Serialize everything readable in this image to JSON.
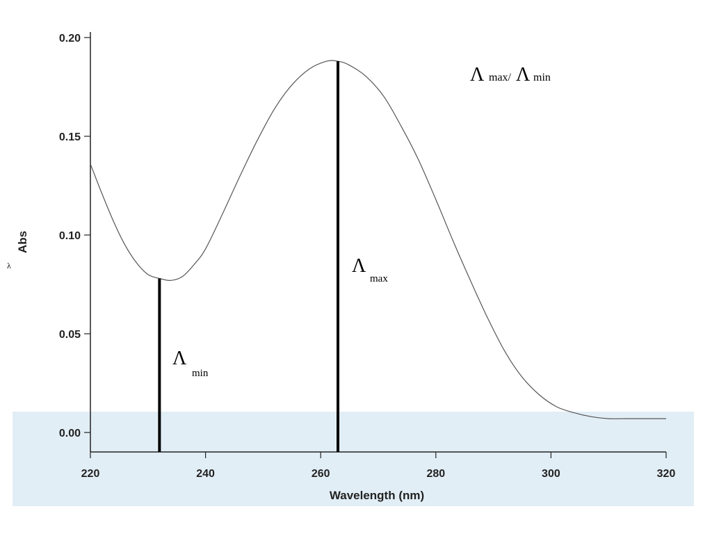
{
  "chart_data": {
    "type": "line",
    "title": "",
    "xlabel": "Wavelength (nm)",
    "ylabel": "Abs",
    "xlim": [
      220,
      320
    ],
    "ylim": [
      0,
      0.2
    ],
    "x_ticks": [
      220,
      240,
      260,
      280,
      300,
      320
    ],
    "x_tick_labels": [
      "220",
      "240",
      "260",
      "280",
      "300",
      "320"
    ],
    "y_ticks": [
      0,
      0.05,
      0.1,
      0.15,
      0.2
    ],
    "y_tick_labels": [
      "0.00",
      "0.05",
      "0.10",
      "0.15",
      "0.20"
    ],
    "grid": false,
    "series": [
      {
        "x": [
          220,
          222,
          224,
          226,
          228,
          230,
          232,
          234,
          236,
          238,
          240,
          243,
          246,
          249,
          252,
          255,
          258,
          261,
          263,
          265,
          268,
          271,
          274,
          277,
          280,
          283,
          286,
          289,
          292,
          295,
          298,
          301,
          304,
          307,
          310,
          313,
          316,
          320
        ],
        "y": [
          0.136,
          0.121,
          0.107,
          0.095,
          0.086,
          0.08,
          0.078,
          0.077,
          0.079,
          0.085,
          0.093,
          0.111,
          0.13,
          0.148,
          0.164,
          0.176,
          0.184,
          0.188,
          0.188,
          0.186,
          0.18,
          0.17,
          0.155,
          0.138,
          0.118,
          0.097,
          0.077,
          0.058,
          0.041,
          0.028,
          0.019,
          0.013,
          0.01,
          0.008,
          0.007,
          0.007,
          0.007,
          0.007
        ]
      }
    ],
    "markers": [
      {
        "x": 232,
        "y": 0.078
      },
      {
        "x": 263,
        "y": 0.188
      }
    ]
  },
  "annotations": {
    "lambda_min": {
      "symbol": "Λ",
      "sub": "min"
    },
    "lambda_max": {
      "symbol": "Λ",
      "sub": "max"
    },
    "ratio": {
      "symbol_a": "Λ",
      "sub_a": "max/",
      "symbol_b": "Λ",
      "sub_b": "min"
    }
  },
  "stray_label": "λ"
}
